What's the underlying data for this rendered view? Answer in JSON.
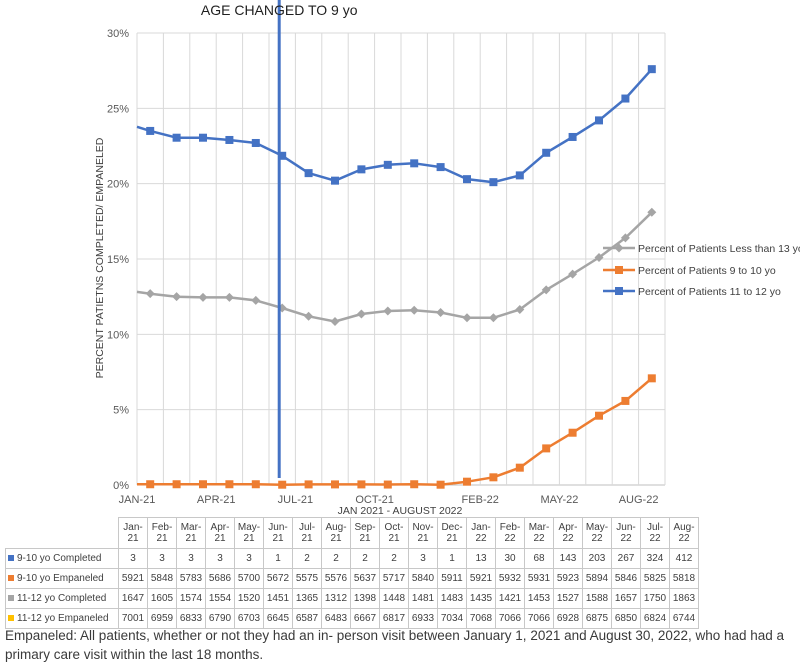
{
  "chart_data": {
    "type": "line",
    "title": "",
    "annotation": "AGE CHANGED TO 9 yo",
    "annotation_x": "Jun-21",
    "ylabel": "PERCENT PATIETNS COMPLETED/ EMPANELED",
    "xlabel": "JAN 2021 - AUGUST 2022",
    "ylim": [
      0,
      30
    ],
    "y_ticks": [
      "0%",
      "5%",
      "10%",
      "15%",
      "20%",
      "25%",
      "30%"
    ],
    "x_ticks": [
      "JAN-21",
      "APR-21",
      "JUL-21",
      "OCT-21",
      "FEB-22",
      "MAY-22",
      "AUG-22"
    ],
    "legend_position": "right",
    "series": [
      {
        "name": "Percent of Patients Less than 13 yo",
        "color": "#a5a5a5",
        "marker": "diamond",
        "values": [
          12.7,
          12.5,
          12.45,
          12.45,
          12.25,
          11.75,
          11.2,
          10.85,
          11.35,
          11.55,
          11.6,
          11.45,
          11.1,
          11.1,
          11.65,
          12.95,
          14.0,
          15.1,
          16.4,
          18.1
        ]
      },
      {
        "name": "Percent of Patients 9 to 10 yo",
        "color": "#ed7d31",
        "marker": "square",
        "values": [
          0.05,
          0.05,
          0.05,
          0.05,
          0.05,
          0.02,
          0.04,
          0.04,
          0.04,
          0.03,
          0.05,
          0.02,
          0.22,
          0.51,
          1.15,
          2.43,
          3.47,
          4.6,
          5.58,
          7.08
        ]
      },
      {
        "name": "Percent of Patients 11 to 12 yo",
        "color": "#4472c4",
        "marker": "square",
        "values": [
          23.5,
          23.05,
          23.05,
          22.9,
          22.7,
          21.85,
          20.7,
          20.2,
          20.95,
          21.25,
          21.35,
          21.1,
          20.3,
          20.1,
          20.55,
          22.05,
          23.1,
          24.2,
          25.65,
          27.6
        ]
      }
    ]
  },
  "table": {
    "months": [
      "Jan-21",
      "Feb-21",
      "Mar-21",
      "Apr-21",
      "May-21",
      "Jun-21",
      "Jul-21",
      "Aug-21",
      "Sep-21",
      "Oct-21",
      "Nov-21",
      "Dec-21",
      "Jan-22",
      "Feb-22",
      "Mar-22",
      "Apr-22",
      "May-22",
      "Jun-22",
      "Jul-22",
      "Aug-22"
    ],
    "rows": [
      {
        "label": "9-10 yo Completed",
        "color": "#4472c4",
        "values": [
          "3",
          "3",
          "3",
          "3",
          "3",
          "1",
          "2",
          "2",
          "2",
          "2",
          "3",
          "1",
          "13",
          "30",
          "68",
          "143",
          "203",
          "267",
          "324",
          "412"
        ]
      },
      {
        "label": "9-10 yo Empaneled",
        "color": "#ed7d31",
        "values": [
          "5921",
          "5848",
          "5783",
          "5686",
          "5700",
          "5672",
          "5575",
          "5576",
          "5637",
          "5717",
          "5840",
          "5911",
          "5921",
          "5932",
          "5931",
          "5923",
          "5894",
          "5846",
          "5825",
          "5818"
        ]
      },
      {
        "label": "11-12 yo Completed",
        "color": "#a5a5a5",
        "values": [
          "1647",
          "1605",
          "1574",
          "1554",
          "1520",
          "1451",
          "1365",
          "1312",
          "1398",
          "1448",
          "1481",
          "1483",
          "1435",
          "1421",
          "1453",
          "1527",
          "1588",
          "1657",
          "1750",
          "1863"
        ]
      },
      {
        "label": "11-12 yo Empaneled",
        "color": "#ffc000",
        "values": [
          "7001",
          "6959",
          "6833",
          "6790",
          "6703",
          "6645",
          "6587",
          "6483",
          "6667",
          "6817",
          "6933",
          "7034",
          "7068",
          "7066",
          "7066",
          "6928",
          "6875",
          "6850",
          "6824",
          "6744"
        ]
      }
    ]
  },
  "footnote": "Empaneled:  All patients, whether or not they had an in- person visit between January 1, 2021 and August 30, 2022, who had had a primary care visit within the last 18 months."
}
